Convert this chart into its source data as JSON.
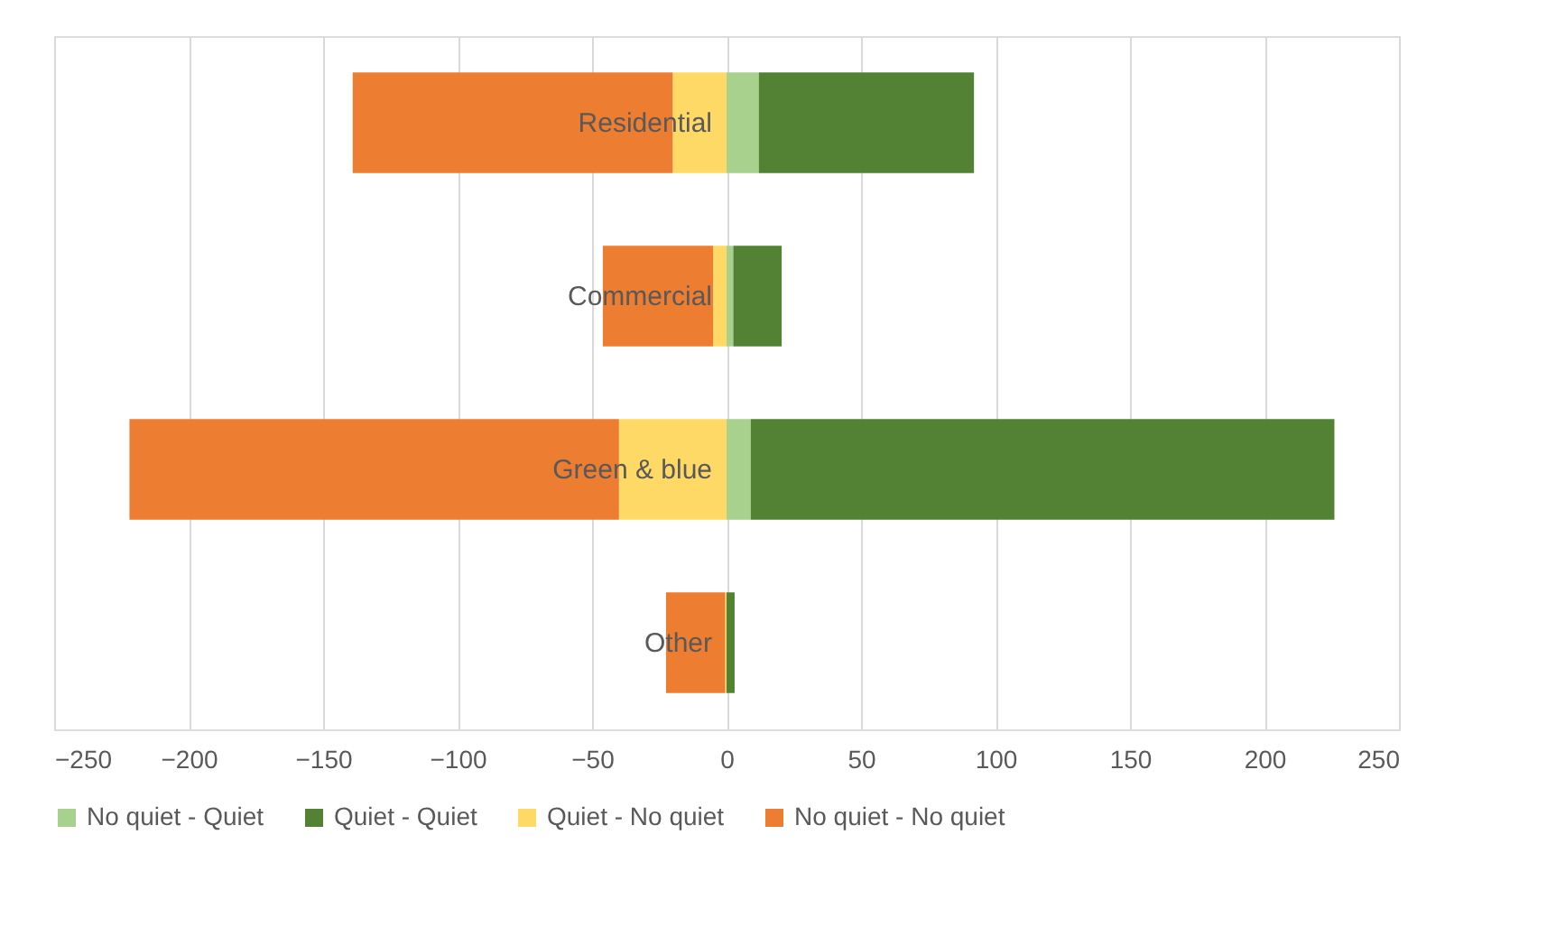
{
  "chart_data": {
    "type": "bar",
    "orientation": "horizontal",
    "stacked": true,
    "categories": [
      "Residential",
      "Commercial",
      "Green & blue",
      "Other"
    ],
    "series": [
      {
        "name": "No quiet - Quiet",
        "color": "#a9d18e",
        "values": [
          12,
          2.5,
          9,
          0
        ]
      },
      {
        "name": "Quiet - Quiet",
        "color": "#548235",
        "values": [
          80,
          18,
          217,
          3
        ]
      },
      {
        "name": "Quiet - No quiet",
        "color": "#ffd966",
        "values": [
          -20,
          -5,
          -40,
          -0.5
        ]
      },
      {
        "name": "No quiet - No quiet",
        "color": "#ed7d31",
        "values": [
          -119,
          -41,
          -182,
          -22
        ]
      }
    ],
    "xlim": [
      -250,
      250
    ],
    "xticks": [
      -250,
      -200,
      -150,
      -100,
      -50,
      0,
      50,
      100,
      150,
      200,
      250
    ],
    "grid": "x",
    "legend": "bottom"
  }
}
